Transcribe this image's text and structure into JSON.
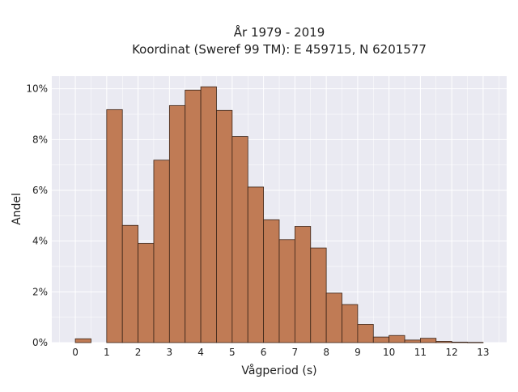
{
  "chart_data": {
    "type": "bar",
    "title": "År 1979 - 2019",
    "subtitle": "Koordinat (Sweref 99 TM): E 459715, N 6201577",
    "xlabel": "Vågperiod (s)",
    "ylabel": "Andel",
    "xlim": [
      -0.75,
      13.75
    ],
    "ylim": [
      0,
      0.105
    ],
    "grid": true,
    "bin_width": 0.5,
    "xticks": [
      0,
      1,
      2,
      3,
      4,
      5,
      6,
      7,
      8,
      9,
      10,
      11,
      12,
      13
    ],
    "xtick_labels": [
      "0",
      "1",
      "2",
      "3",
      "4",
      "5",
      "6",
      "7",
      "8",
      "9",
      "10",
      "11",
      "12",
      "13"
    ],
    "yticks": [
      0,
      0.02,
      0.04,
      0.06,
      0.08,
      0.1
    ],
    "ytick_labels": [
      "0%",
      "2%",
      "4%",
      "6%",
      "8%",
      "10%"
    ],
    "bins": [
      {
        "x0": 0.0,
        "x1": 0.5,
        "value": 0.0015
      },
      {
        "x0": 1.0,
        "x1": 1.5,
        "value": 0.0918
      },
      {
        "x0": 1.5,
        "x1": 2.0,
        "value": 0.0462
      },
      {
        "x0": 2.0,
        "x1": 2.5,
        "value": 0.0391
      },
      {
        "x0": 2.5,
        "x1": 3.0,
        "value": 0.0719
      },
      {
        "x0": 3.0,
        "x1": 3.5,
        "value": 0.0934
      },
      {
        "x0": 3.5,
        "x1": 4.0,
        "value": 0.0995
      },
      {
        "x0": 4.0,
        "x1": 4.5,
        "value": 0.1008
      },
      {
        "x0": 4.5,
        "x1": 5.0,
        "value": 0.0915
      },
      {
        "x0": 5.0,
        "x1": 5.5,
        "value": 0.0812
      },
      {
        "x0": 5.5,
        "x1": 6.0,
        "value": 0.0613
      },
      {
        "x0": 6.0,
        "x1": 6.5,
        "value": 0.0484
      },
      {
        "x0": 6.5,
        "x1": 7.0,
        "value": 0.0406
      },
      {
        "x0": 7.0,
        "x1": 7.5,
        "value": 0.0458
      },
      {
        "x0": 7.5,
        "x1": 8.0,
        "value": 0.0373
      },
      {
        "x0": 8.0,
        "x1": 8.5,
        "value": 0.0195
      },
      {
        "x0": 8.5,
        "x1": 9.0,
        "value": 0.015
      },
      {
        "x0": 9.0,
        "x1": 9.5,
        "value": 0.0072
      },
      {
        "x0": 9.5,
        "x1": 10.0,
        "value": 0.0022
      },
      {
        "x0": 10.0,
        "x1": 10.5,
        "value": 0.0028
      },
      {
        "x0": 10.5,
        "x1": 11.0,
        "value": 0.001
      },
      {
        "x0": 11.0,
        "x1": 11.5,
        "value": 0.0017
      },
      {
        "x0": 11.5,
        "x1": 12.0,
        "value": 0.0005
      },
      {
        "x0": 12.0,
        "x1": 12.5,
        "value": 0.0002
      },
      {
        "x0": 12.5,
        "x1": 13.0,
        "value": 0.0001
      }
    ],
    "colors": {
      "bar_fill": "#c07b55",
      "bar_edge": "#3a2418",
      "plot_background": "#eaeaf2",
      "grid": "#ffffff"
    }
  }
}
